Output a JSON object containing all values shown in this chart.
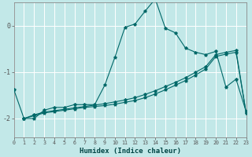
{
  "xlabel": "Humidex (Indice chaleur)",
  "background_color": "#c2e8e8",
  "grid_color": "#ffffff",
  "line_color": "#006868",
  "xlim": [
    0,
    23
  ],
  "ylim": [
    -2.4,
    0.5
  ],
  "yticks": [
    0,
    -1,
    -2
  ],
  "xticks": [
    0,
    1,
    2,
    3,
    4,
    5,
    6,
    7,
    8,
    9,
    10,
    11,
    12,
    13,
    14,
    15,
    16,
    17,
    18,
    19,
    20,
    21,
    22,
    23
  ],
  "series1_x": [
    0,
    1,
    2,
    3,
    4,
    5,
    6,
    7,
    8,
    9,
    10,
    11,
    12,
    13,
    14,
    15,
    16,
    17,
    18,
    19,
    20,
    21,
    22,
    23
  ],
  "series1_y": [
    -1.38,
    -2.0,
    -2.0,
    -1.82,
    -1.76,
    -1.76,
    -1.7,
    -1.7,
    -1.7,
    -1.28,
    -0.68,
    -0.03,
    0.04,
    0.32,
    0.58,
    -0.05,
    -0.15,
    -0.48,
    -0.57,
    -0.62,
    -0.55,
    -1.32,
    -1.15,
    -1.85
  ],
  "series2_x": [
    1,
    2,
    3,
    4,
    5,
    6,
    7,
    8,
    9,
    10,
    11,
    12,
    13,
    14,
    15,
    16,
    17,
    18,
    19,
    20,
    21,
    22,
    23
  ],
  "series2_y": [
    -2.0,
    -1.92,
    -1.86,
    -1.83,
    -1.8,
    -1.77,
    -1.74,
    -1.71,
    -1.68,
    -1.64,
    -1.6,
    -1.55,
    -1.48,
    -1.4,
    -1.31,
    -1.22,
    -1.12,
    -1.0,
    -0.88,
    -0.62,
    -0.57,
    -0.53,
    -1.88
  ],
  "series3_x": [
    1,
    2,
    3,
    4,
    5,
    6,
    7,
    8,
    9,
    10,
    11,
    12,
    13,
    14,
    15,
    16,
    17,
    18,
    19,
    20,
    21,
    22,
    23
  ],
  "series3_y": [
    -2.0,
    -1.94,
    -1.88,
    -1.85,
    -1.82,
    -1.79,
    -1.76,
    -1.74,
    -1.72,
    -1.69,
    -1.65,
    -1.61,
    -1.55,
    -1.47,
    -1.38,
    -1.28,
    -1.18,
    -1.06,
    -0.93,
    -0.66,
    -0.61,
    -0.57,
    -1.88
  ]
}
